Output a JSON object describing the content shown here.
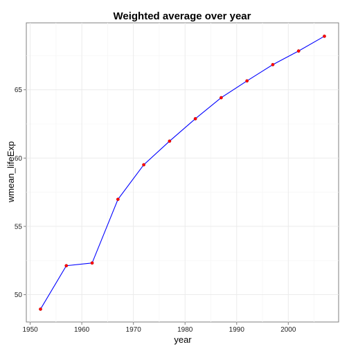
{
  "chart_data": {
    "type": "line",
    "title": "Weighted average over year",
    "xlabel": "year",
    "ylabel": "wmean_lifeExp",
    "xlim": [
      1949.25,
      2009.75
    ],
    "ylim": [
      48.0,
      69.9
    ],
    "xticks": [
      1950,
      1960,
      1970,
      1980,
      1990,
      2000
    ],
    "yticks": [
      50,
      55,
      60,
      65
    ],
    "grid": true,
    "line_color": "#0000ff",
    "point_color": "#ff0000",
    "series": [
      {
        "x": [
          1952,
          1957,
          1962,
          1967,
          1972,
          1977,
          1982,
          1987,
          1992,
          1997,
          2002,
          2007
        ],
        "values": [
          48.94,
          52.12,
          52.32,
          56.98,
          59.51,
          61.24,
          62.88,
          64.42,
          65.65,
          66.84,
          67.84,
          68.92
        ]
      }
    ]
  }
}
